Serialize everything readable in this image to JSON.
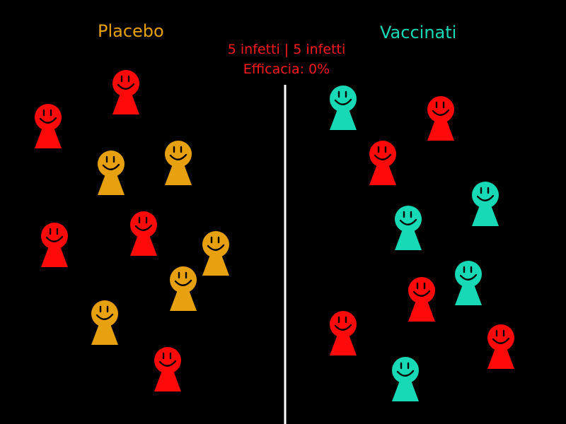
{
  "groups": {
    "placebo": {
      "label": "Placebo",
      "color": "#e6a010"
    },
    "vaccinati": {
      "label": "Vaccinati",
      "color": "#17d9b6"
    }
  },
  "stats": {
    "infected_line": "5 infetti | 5 infetti",
    "efficacy_line": "Efficacia: 0%",
    "color": "#ff1a1a"
  },
  "infected_color": "#ff0a0a",
  "divider_color": "#ffffff",
  "people": {
    "placebo": [
      {
        "state": "infected"
      },
      {
        "state": "infected"
      },
      {
        "state": "healthy"
      },
      {
        "state": "healthy"
      },
      {
        "state": "infected"
      },
      {
        "state": "infected"
      },
      {
        "state": "healthy"
      },
      {
        "state": "healthy"
      },
      {
        "state": "healthy"
      },
      {
        "state": "infected"
      }
    ],
    "vaccinati": [
      {
        "state": "healthy"
      },
      {
        "state": "infected"
      },
      {
        "state": "infected"
      },
      {
        "state": "healthy"
      },
      {
        "state": "healthy"
      },
      {
        "state": "healthy"
      },
      {
        "state": "infected"
      },
      {
        "state": "infected"
      },
      {
        "state": "infected"
      },
      {
        "state": "healthy"
      }
    ]
  }
}
